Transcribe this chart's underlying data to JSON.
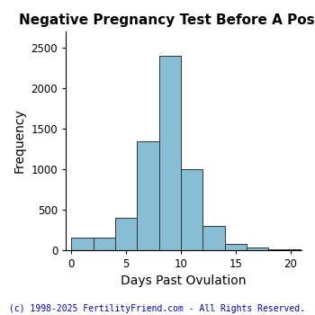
{
  "title": "Negative Pregnancy Test Before A Positive",
  "xlabel": "Days Past Ovulation",
  "ylabel": "Frequency",
  "bar_color": "#87BED4",
  "bar_edge_color": "#333333",
  "bar_edge_width": 0.7,
  "background_color": "#ffffff",
  "xlim": [
    -0.5,
    21
  ],
  "ylim": [
    0,
    2700
  ],
  "xticks": [
    0,
    5,
    10,
    15,
    20
  ],
  "yticks": [
    0,
    500,
    1000,
    1500,
    2000,
    2500
  ],
  "bin_edges": [
    0,
    2,
    4,
    6,
    8,
    10,
    12,
    14,
    16,
    18,
    21
  ],
  "bar_heights": [
    150,
    150,
    400,
    1350,
    2400,
    1000,
    300,
    75,
    25,
    10
  ],
  "title_fontsize": 11,
  "axis_fontsize": 10,
  "tick_fontsize": 8.5,
  "copyright_text": "(c) 1998-2025 FertilityFriend.com - All Rights Reserved.",
  "copyright_fontsize": 7,
  "copyright_color": "#0000BB"
}
